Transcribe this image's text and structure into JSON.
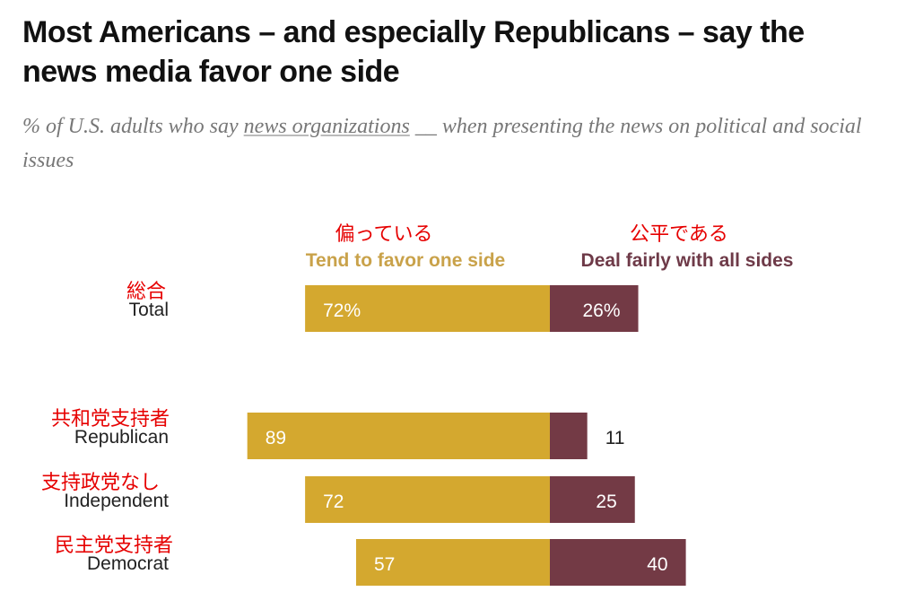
{
  "chart_data": {
    "type": "bar",
    "orientation": "horizontal-diverging-stacked",
    "title": "Most Americans – and especially Republicans – say the news media favor one side",
    "subtitle_parts": [
      "% of U.S. adults who say ",
      "news organizations",
      " __ when presenting the news on political and social issues"
    ],
    "series": [
      {
        "name": "Tend to favor one side",
        "name_jp": "偏っている",
        "color": "#d4a82f",
        "values": [
          72,
          89,
          72,
          57
        ]
      },
      {
        "name": "Deal fairly with all sides",
        "name_jp": "公平である",
        "color": "#733a45",
        "values": [
          26,
          11,
          25,
          40
        ]
      }
    ],
    "categories": [
      "Total",
      "Republican",
      "Independent",
      "Democrat"
    ],
    "categories_jp": [
      "総合",
      "共和党支持者",
      "支持政党なし",
      "民主党支持者"
    ],
    "value_labels": [
      [
        "72%",
        "89",
        "72",
        "57"
      ],
      [
        "26%",
        "11",
        "25",
        "40"
      ]
    ],
    "xlim": [
      0,
      100
    ]
  }
}
